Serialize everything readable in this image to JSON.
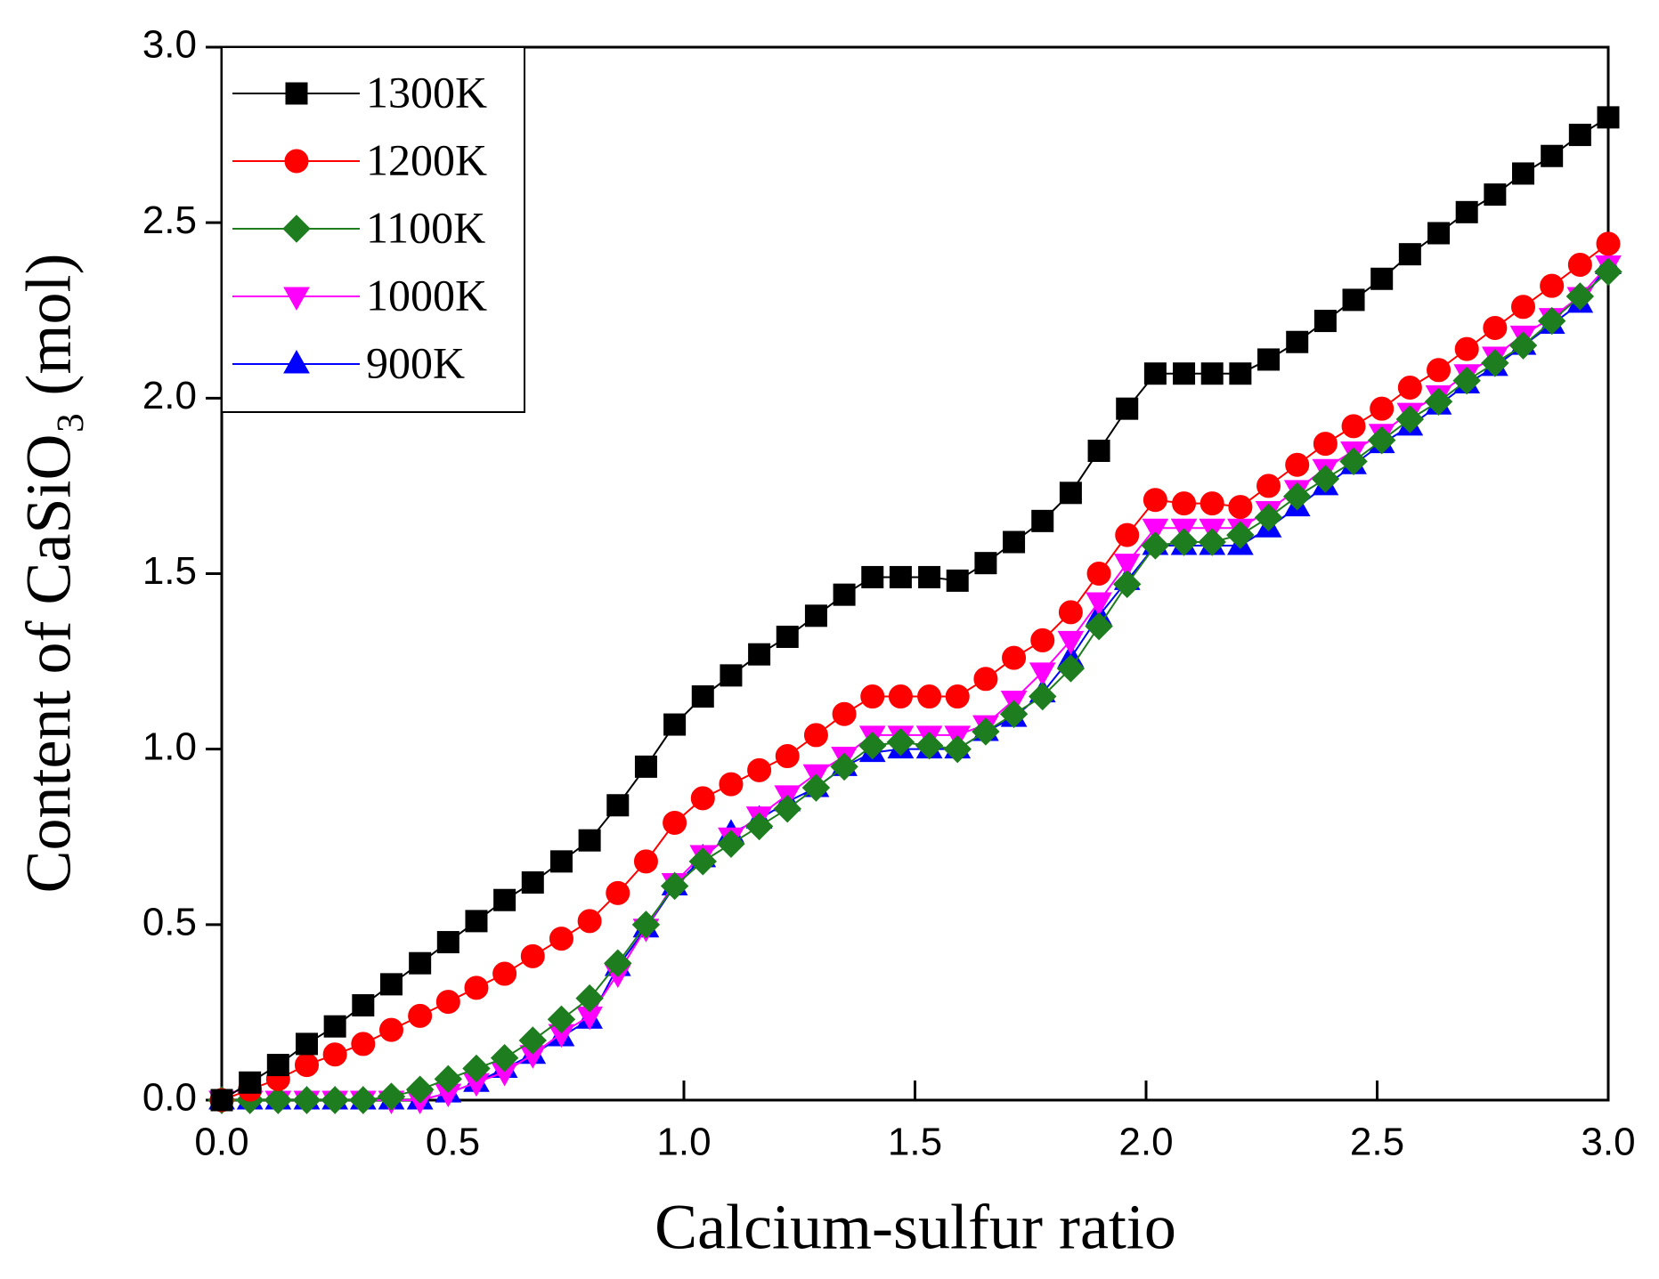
{
  "chart_data": {
    "type": "line",
    "x_label": "Calcium-sulfur ratio",
    "y_label": "Content of CaSiO₃ (mol)",
    "x": [
      0,
      0.061,
      0.122,
      0.184,
      0.245,
      0.306,
      0.367,
      0.429,
      0.49,
      0.551,
      0.612,
      0.673,
      0.735,
      0.796,
      0.857,
      0.918,
      0.98,
      1.041,
      1.102,
      1.163,
      1.224,
      1.286,
      1.347,
      1.408,
      1.469,
      1.531,
      1.592,
      1.653,
      1.714,
      1.776,
      1.837,
      1.898,
      1.959,
      2.02,
      2.082,
      2.143,
      2.204,
      2.265,
      2.327,
      2.388,
      2.449,
      2.51,
      2.571,
      2.633,
      2.694,
      2.755,
      2.816,
      2.878,
      2.939,
      3.0
    ],
    "series": [
      {
        "name": "1300K",
        "color": "#000000",
        "marker": "square",
        "values": [
          0.0,
          0.05,
          0.1,
          0.16,
          0.21,
          0.27,
          0.33,
          0.39,
          0.45,
          0.51,
          0.57,
          0.62,
          0.68,
          0.74,
          0.84,
          0.95,
          1.07,
          1.15,
          1.21,
          1.27,
          1.32,
          1.38,
          1.44,
          1.49,
          1.49,
          1.49,
          1.48,
          1.53,
          1.59,
          1.65,
          1.73,
          1.85,
          1.97,
          2.07,
          2.07,
          2.07,
          2.07,
          2.11,
          2.16,
          2.22,
          2.28,
          2.34,
          2.41,
          2.47,
          2.53,
          2.58,
          2.64,
          2.69,
          2.75,
          2.8
        ]
      },
      {
        "name": "1200K",
        "color": "#ff0000",
        "marker": "circle",
        "values": [
          0.0,
          0.03,
          0.06,
          0.1,
          0.13,
          0.16,
          0.2,
          0.24,
          0.28,
          0.32,
          0.36,
          0.41,
          0.46,
          0.51,
          0.59,
          0.68,
          0.79,
          0.86,
          0.9,
          0.94,
          0.98,
          1.04,
          1.1,
          1.15,
          1.15,
          1.15,
          1.15,
          1.2,
          1.26,
          1.31,
          1.39,
          1.5,
          1.61,
          1.71,
          1.7,
          1.7,
          1.69,
          1.75,
          1.81,
          1.87,
          1.92,
          1.97,
          2.03,
          2.08,
          2.14,
          2.2,
          2.26,
          2.32,
          2.38,
          2.44
        ]
      },
      {
        "name": "1100K",
        "color": "#1e7d1e",
        "marker": "diamond",
        "values": [
          0.0,
          0.0,
          0.0,
          0.0,
          0.0,
          0.0,
          0.01,
          0.03,
          0.06,
          0.09,
          0.12,
          0.17,
          0.23,
          0.29,
          0.39,
          0.5,
          0.61,
          0.68,
          0.73,
          0.78,
          0.83,
          0.89,
          0.95,
          1.01,
          1.02,
          1.01,
          1.0,
          1.05,
          1.1,
          1.15,
          1.23,
          1.35,
          1.47,
          1.58,
          1.59,
          1.59,
          1.61,
          1.66,
          1.72,
          1.77,
          1.82,
          1.88,
          1.94,
          1.99,
          2.05,
          2.1,
          2.15,
          2.22,
          2.29,
          2.36
        ]
      },
      {
        "name": "1000K",
        "color": "#ff00ff",
        "marker": "triangle-down",
        "values": [
          0.0,
          0.0,
          0.0,
          0.0,
          0.0,
          0.0,
          0.0,
          0.0,
          0.02,
          0.05,
          0.08,
          0.13,
          0.19,
          0.24,
          0.36,
          0.49,
          0.62,
          0.7,
          0.75,
          0.81,
          0.87,
          0.93,
          0.98,
          1.04,
          1.04,
          1.04,
          1.04,
          1.07,
          1.14,
          1.22,
          1.31,
          1.42,
          1.53,
          1.63,
          1.63,
          1.63,
          1.63,
          1.68,
          1.74,
          1.8,
          1.85,
          1.9,
          1.96,
          2.01,
          2.07,
          2.12,
          2.18,
          2.23,
          2.29,
          2.38
        ]
      },
      {
        "name": "900K",
        "color": "#0000ff",
        "marker": "triangle-up",
        "values": [
          0.0,
          0.0,
          0.0,
          0.0,
          0.0,
          0.0,
          0.0,
          0.0,
          0.02,
          0.05,
          0.09,
          0.13,
          0.18,
          0.23,
          0.38,
          0.49,
          0.61,
          0.69,
          0.76,
          0.8,
          0.85,
          0.89,
          0.95,
          0.99,
          1.0,
          1.0,
          1.0,
          1.05,
          1.09,
          1.16,
          1.26,
          1.38,
          1.48,
          1.58,
          1.58,
          1.58,
          1.58,
          1.63,
          1.69,
          1.75,
          1.81,
          1.87,
          1.92,
          1.98,
          2.04,
          2.09,
          2.15,
          2.21,
          2.27,
          2.38
        ]
      }
    ],
    "xlim": [
      0,
      3.0
    ],
    "ylim": [
      0,
      3.0
    ],
    "xticks": [
      {
        "value": 0,
        "label": "0.0"
      },
      {
        "value": 0.5,
        "label": "0.5"
      },
      {
        "value": 1,
        "label": "1.0"
      },
      {
        "value": 1.5,
        "label": "1.5"
      },
      {
        "value": 2,
        "label": "2.0"
      },
      {
        "value": 2.5,
        "label": "2.5"
      },
      {
        "value": 3,
        "label": "3.0"
      }
    ],
    "yticks": [
      {
        "value": 0,
        "label": "0.0"
      },
      {
        "value": 0.5,
        "label": "0.5"
      },
      {
        "value": 1,
        "label": "1.0"
      },
      {
        "value": 1.5,
        "label": "1.5"
      },
      {
        "value": 2,
        "label": "2.0"
      },
      {
        "value": 2.5,
        "label": "2.5"
      },
      {
        "value": 3,
        "label": "3.0"
      }
    ],
    "grid": false,
    "legend": "upper left"
  }
}
